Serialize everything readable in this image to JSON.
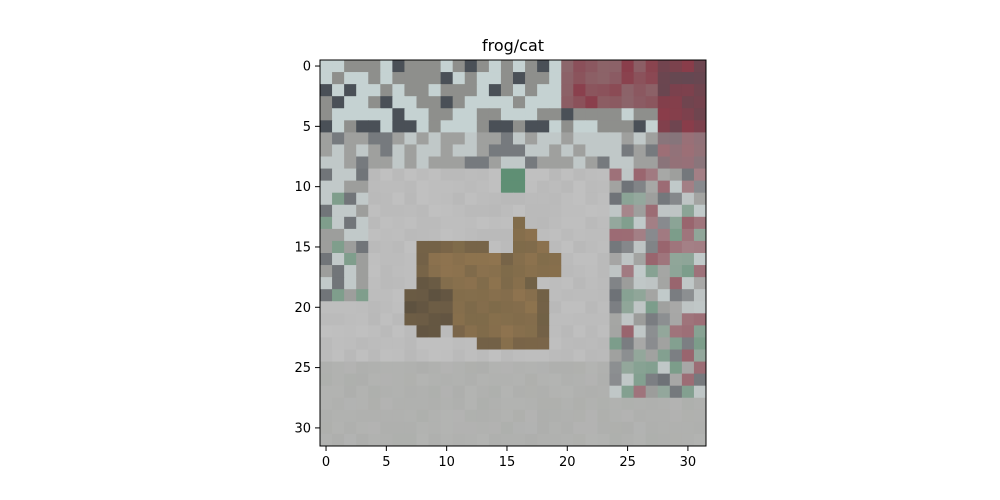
{
  "title": "frog/cat",
  "image": {
    "description_size": "32x32 pixelated photo",
    "palette": {
      "floor": "#b9b9b9",
      "floor_light": "#c8c8c8",
      "floor_shadow": "#a8aaa6",
      "object_brown": "#7e6a4a",
      "object_dark": "#5d5140",
      "object_light": "#9a7a52",
      "clutter_white": "#c5d2d2",
      "clutter_grey": "#8e8f8c",
      "clutter_red": "#8a3d4a",
      "clutter_dark": "#4a5057",
      "clutter_green": "#5f8f74"
    }
  },
  "axes": {
    "x_ticks": [
      "0",
      "5",
      "10",
      "15",
      "20",
      "25",
      "30"
    ],
    "y_ticks": [
      "0",
      "5",
      "10",
      "15",
      "20",
      "25",
      "30"
    ],
    "x_range": [
      -0.5,
      31.5
    ],
    "y_range": [
      -0.5,
      31.5
    ]
  }
}
